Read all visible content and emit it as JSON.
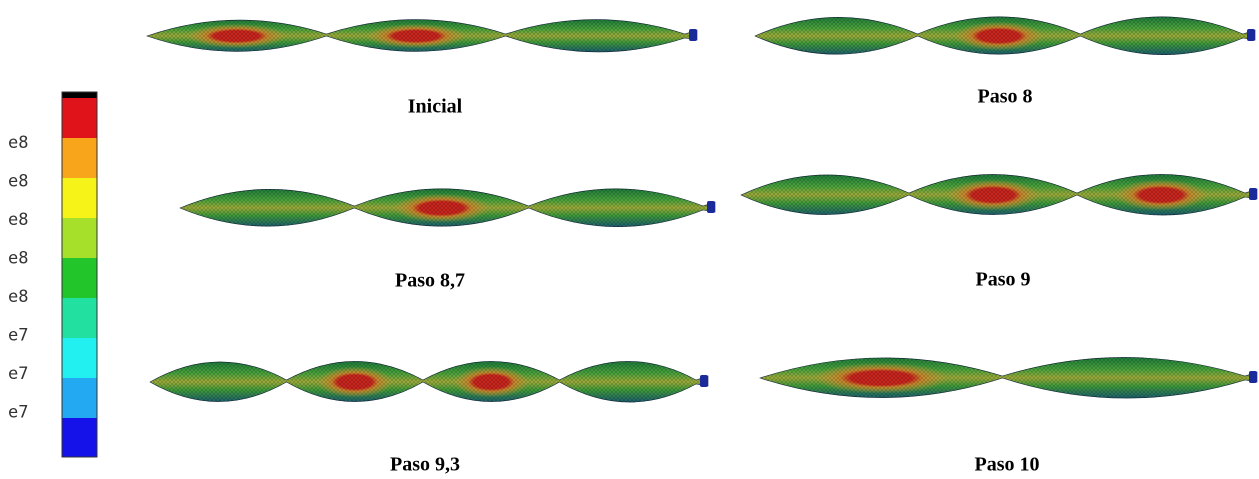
{
  "legend": {
    "labels": [
      "e8",
      "e8",
      "e8",
      "e8",
      "e8",
      "e7",
      "e7",
      "e7"
    ]
  },
  "panels": [
    {
      "caption": "Inicial"
    },
    {
      "caption": "Paso 8"
    },
    {
      "caption": "Paso 8,7"
    },
    {
      "caption": "Paso 9"
    },
    {
      "caption": "Paso 9,3"
    },
    {
      "caption": "Paso 10"
    }
  ]
}
